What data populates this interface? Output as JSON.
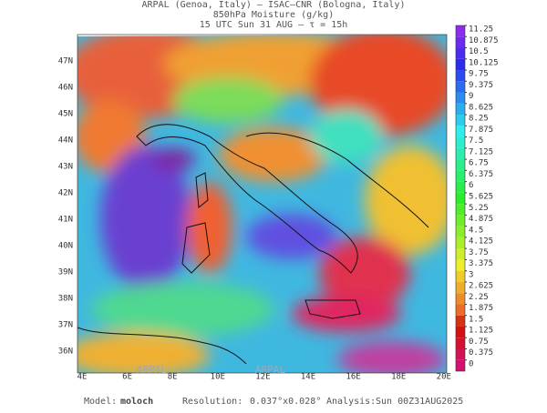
{
  "header": {
    "line1": "ARPAL (Genoa, Italy)  –  ISAC–CNR (Bologna, Italy)",
    "line2": "850hPa Moisture (g/kg)",
    "line3": "15 UTC Sun 31 AUG  –  τ = 15h"
  },
  "map": {
    "lon_labels": [
      "4E",
      "6E",
      "8E",
      "10E",
      "12E",
      "14E",
      "16E",
      "18E",
      "20E"
    ],
    "lat_labels": [
      "47N",
      "46N",
      "45N",
      "44N",
      "43N",
      "42N",
      "41N",
      "40N",
      "39N",
      "38N",
      "37N",
      "36N"
    ],
    "watermark": "ARPAL"
  },
  "colorbar": {
    "ticks": [
      0,
      0.375,
      0.75,
      1.125,
      1.5,
      1.875,
      2.25,
      2.625,
      3,
      3.375,
      3.75,
      4.125,
      4.5,
      4.875,
      5.25,
      5.625,
      6,
      6.375,
      6.75,
      7.125,
      7.5,
      7.875,
      8.25,
      8.625,
      9,
      9.375,
      9.75,
      10.125,
      10.5,
      10.875,
      11.25
    ]
  },
  "footer": {
    "model_label": "Model:",
    "model": "moloch",
    "resolution_label": "Resolution:",
    "resolution": "0.037°x0.028°",
    "analysis_label": "Analysis:",
    "analysis": "Sun 00Z31AUG2025"
  }
}
